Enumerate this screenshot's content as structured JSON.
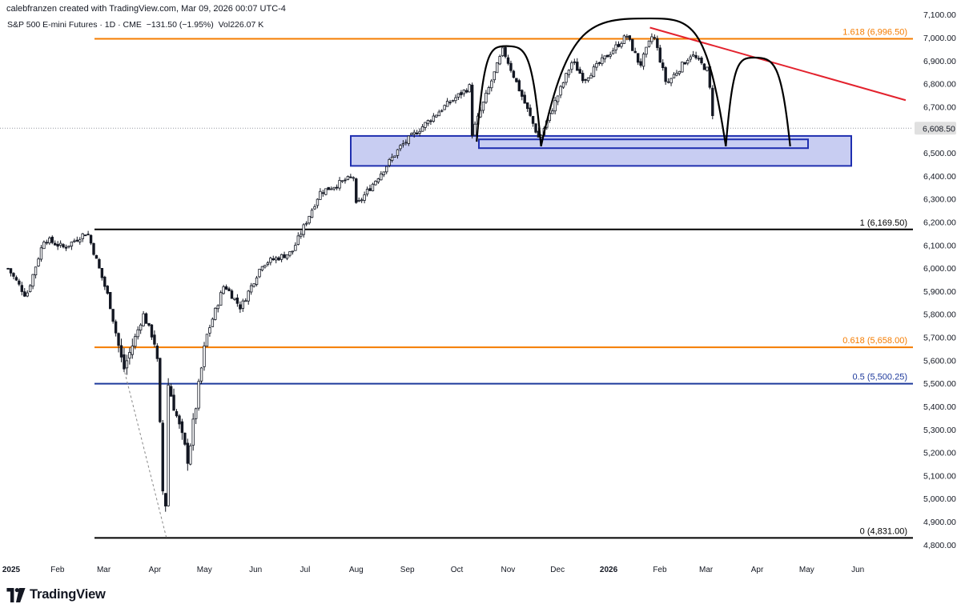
{
  "header": {
    "credit": "calebfranzen created with TradingView.com, Mar 09, 2026 00:07 UTC-4",
    "symbol_line": "S&P 500 E-mini Futures · 1D · CME",
    "change": "−131.50 (−1.95%)",
    "volume": "Vol226.07 K"
  },
  "brand": {
    "name": "TradingView",
    "logo_icon": "tradingview-logo-icon"
  },
  "colors": {
    "fib_1618": "#f57c00",
    "fib_0618": "#f57c00",
    "fib_05": "#1e3a9c",
    "fib_black": "#000000",
    "trendline": "#e3222d",
    "zone_fill": "#c8cdf2",
    "zone_border": "#1f2fb0",
    "candle_up": "#ffffff",
    "candle_down": "#131722"
  },
  "chart_data": {
    "type": "candlestick",
    "symbol": "S&P 500 E-mini Futures",
    "interval": "1D",
    "exchange": "CME",
    "y_ticks": [
      "7,100.00",
      "7,000.00",
      "6,900.00",
      "6,800.00",
      "6,700.00",
      "6,600.00",
      "6,500.00",
      "6,400.00",
      "6,300.00",
      "6,200.00",
      "6,100.00",
      "6,000.00",
      "5,900.00",
      "5,800.00",
      "5,700.00",
      "5,600.00",
      "5,500.00",
      "5,400.00",
      "5,300.00",
      "5,200.00",
      "5,100.00",
      "5,000.00",
      "4,900.00",
      "4,800.00"
    ],
    "ylim": [
      4770,
      7130
    ],
    "x_ticks": [
      {
        "label": "2025",
        "bold": true
      },
      {
        "label": "Feb"
      },
      {
        "label": "Mar"
      },
      {
        "label": "Apr"
      },
      {
        "label": "May"
      },
      {
        "label": "Jun"
      },
      {
        "label": "Jul"
      },
      {
        "label": "Aug"
      },
      {
        "label": "Sep"
      },
      {
        "label": "Oct"
      },
      {
        "label": "Nov"
      },
      {
        "label": "Dec"
      },
      {
        "label": "2026",
        "bold": true
      },
      {
        "label": "Feb"
      },
      {
        "label": "Mar"
      },
      {
        "label": "Apr"
      },
      {
        "label": "May"
      },
      {
        "label": "Jun"
      }
    ],
    "last_price": {
      "label": "6,608.50",
      "value": 6608.5
    },
    "fib_levels": [
      {
        "label": "1.618 (6,996.50)",
        "value": 6996.5,
        "color_key": "fib_1618"
      },
      {
        "label": "1 (6,169.50)",
        "value": 6169.5,
        "color_key": "fib_black"
      },
      {
        "label": "0.618 (5,658.00)",
        "value": 5658.0,
        "color_key": "fib_0618"
      },
      {
        "label": "0.5 (5,500.25)",
        "value": 5500.25,
        "color_key": "fib_05"
      },
      {
        "label": "0 (4,831.00)",
        "value": 4831.0,
        "color_key": "fib_black"
      }
    ],
    "support_zone": {
      "low": 6445,
      "high": 6575
    },
    "neckline_zone": {
      "low": 6522,
      "high": 6560
    },
    "series": [
      {
        "name": "",
        "anchors": [
          [
            "2025-01-02",
            6000
          ],
          [
            "2025-01-13",
            5880
          ],
          [
            "2025-01-24",
            6130
          ],
          [
            "2025-02-05",
            6090
          ],
          [
            "2025-02-19",
            6160
          ],
          [
            "2025-03-04",
            5870
          ],
          [
            "2025-03-13",
            5560
          ],
          [
            "2025-03-25",
            5800
          ],
          [
            "2025-04-02",
            5660
          ],
          [
            "2025-04-07",
            4831
          ],
          [
            "2025-04-09",
            5500
          ],
          [
            "2025-04-21",
            5170
          ],
          [
            "2025-05-02",
            5700
          ],
          [
            "2025-05-13",
            5930
          ],
          [
            "2025-05-23",
            5830
          ],
          [
            "2025-06-05",
            6020
          ],
          [
            "2025-06-23",
            6070
          ],
          [
            "2025-07-10",
            6330
          ],
          [
            "2025-07-31",
            6400
          ],
          [
            "2025-08-01",
            6270
          ],
          [
            "2025-08-28",
            6530
          ],
          [
            "2025-09-23",
            6700
          ],
          [
            "2025-10-09",
            6790
          ],
          [
            "2025-10-10",
            6580
          ],
          [
            "2025-10-29",
            6950
          ],
          [
            "2025-11-20",
            6560
          ],
          [
            "2025-12-10",
            6900
          ],
          [
            "2025-12-17",
            6820
          ],
          [
            "2026-01-12",
            7010
          ],
          [
            "2026-01-20",
            6880
          ],
          [
            "2026-01-28",
            7020
          ],
          [
            "2026-02-05",
            6800
          ],
          [
            "2026-02-20",
            6930
          ],
          [
            "2026-03-02",
            6860
          ],
          [
            "2026-03-06",
            6608.5
          ]
        ]
      }
    ],
    "arcs": [
      {
        "from": [
          "2025-10-13",
          6550
        ],
        "peak": [
          "2025-10-31",
          6930
        ],
        "to": [
          "2025-11-21",
          6530
        ]
      },
      {
        "from": [
          "2025-11-21",
          6530
        ],
        "peak": [
          "2026-01-26",
          7050
        ],
        "to": [
          "2026-03-13",
          6530
        ]
      },
      {
        "from": [
          "2026-03-13",
          6530
        ],
        "peak": [
          "2026-03-30",
          6880
        ],
        "to": [
          "2026-04-21",
          6530
        ]
      }
    ],
    "trendline": {
      "from": [
        "2026-01-26",
        7045
      ],
      "to": [
        "2026-06-30",
        6730
      ]
    },
    "dashed_line": {
      "from": [
        "2025-03-13",
        5570
      ],
      "to": [
        "2025-04-08",
        4831
      ]
    }
  }
}
